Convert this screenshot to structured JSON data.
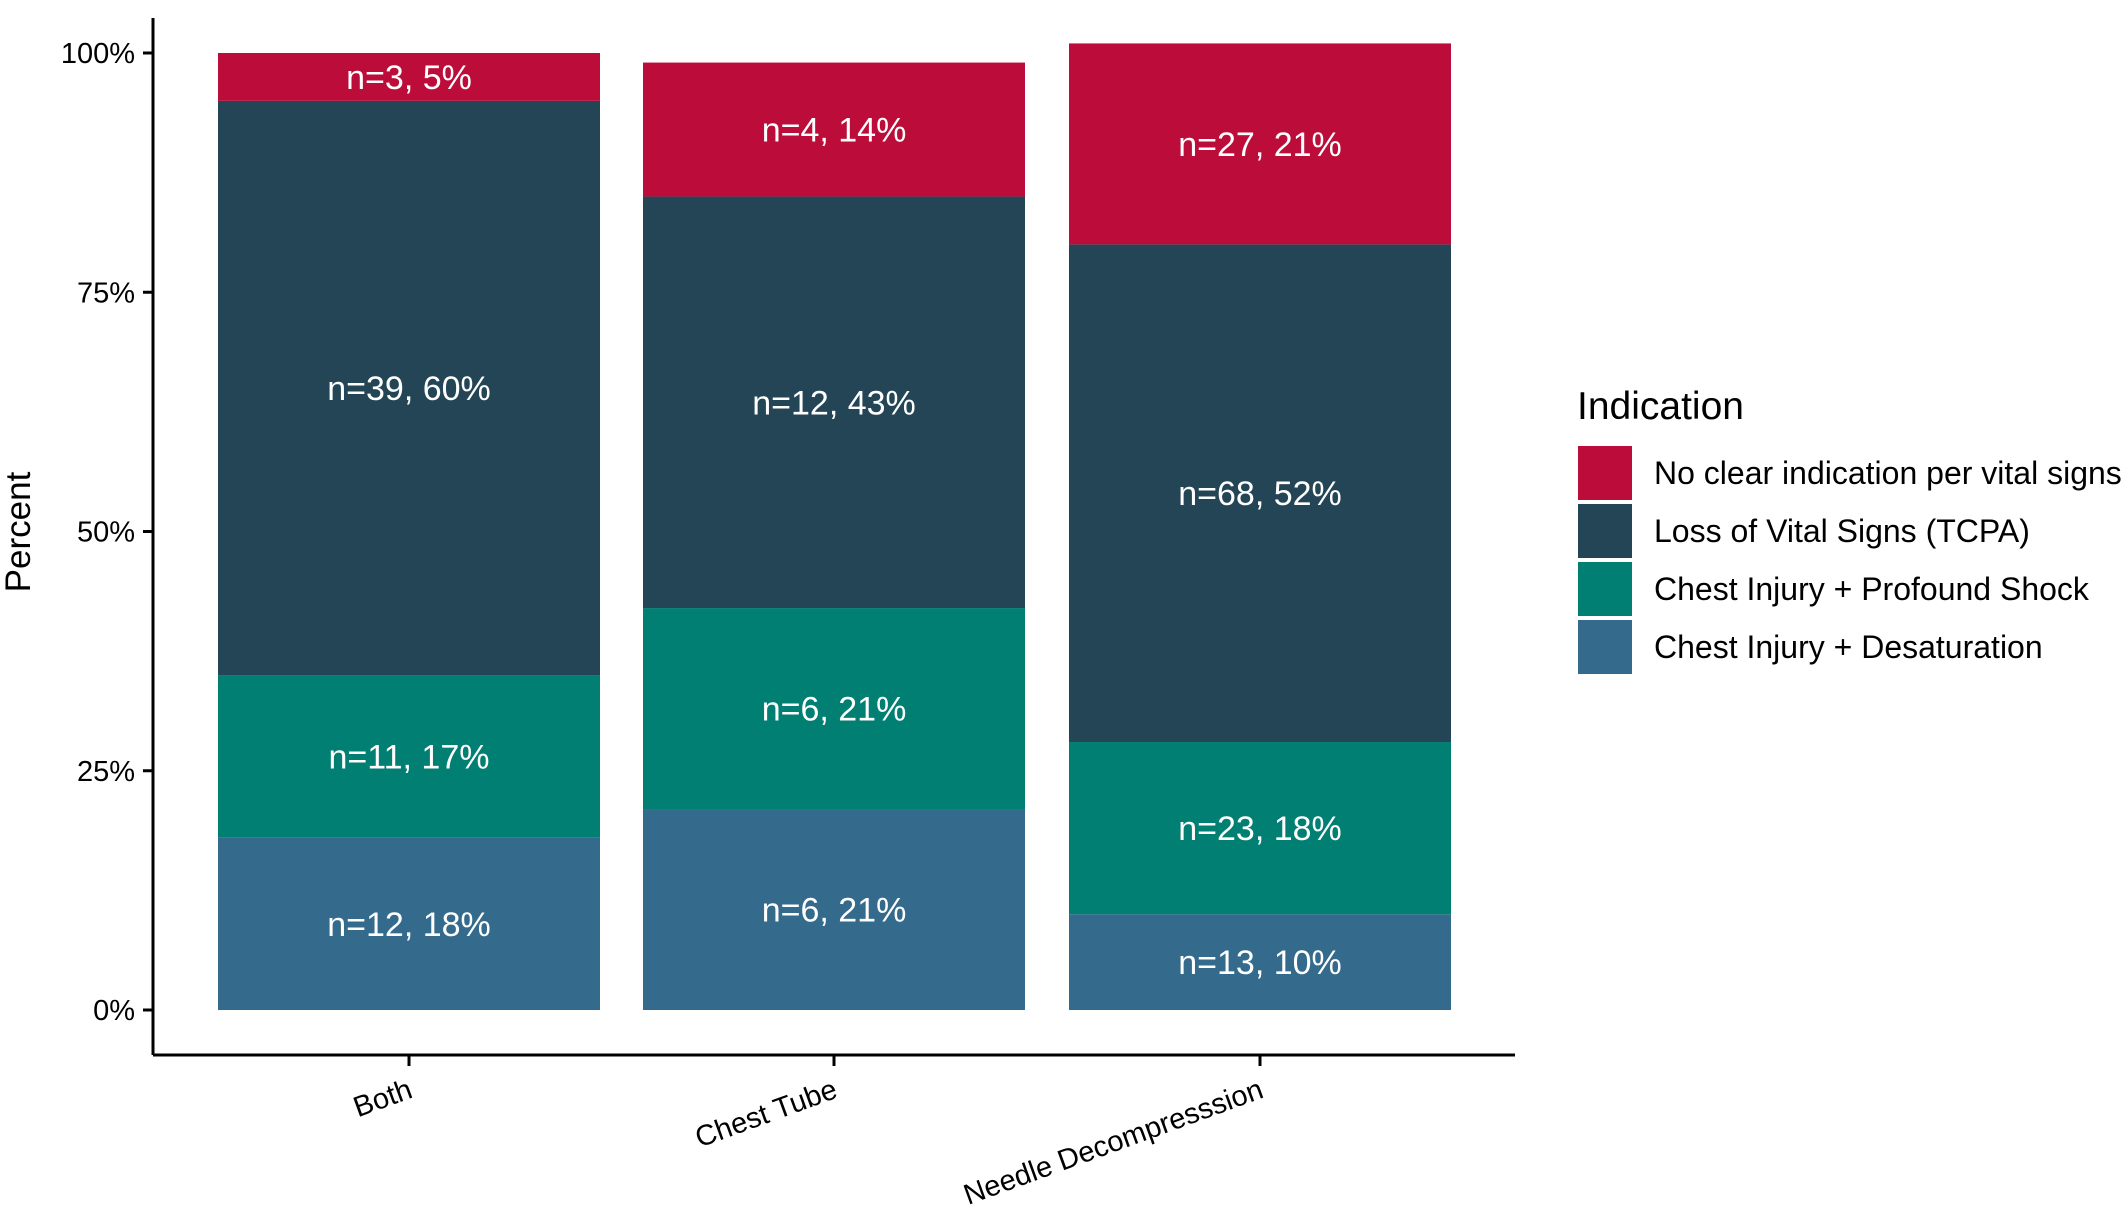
{
  "chart_data": {
    "type": "bar",
    "stacked": true,
    "orientation": "vertical",
    "title": "",
    "xlabel": "",
    "ylabel": "Percent",
    "ylim": [
      0,
      100
    ],
    "yticks": [
      "0%",
      "25%",
      "50%",
      "75%",
      "100%"
    ],
    "ytick_values": [
      0,
      25,
      50,
      75,
      100
    ],
    "categories": [
      "Both",
      "Chest Tube",
      "Needle Decompresssion"
    ],
    "legend_title": "Indication",
    "legend_position": "right",
    "grid": false,
    "series": [
      {
        "name": "Chest Injury + Desaturation",
        "color": "#346a8b",
        "values": [
          18,
          21,
          10
        ],
        "labels": [
          "n=12, 18%",
          "n=6, 21%",
          "n=13, 10%"
        ]
      },
      {
        "name": "Chest Injury + Profound Shock",
        "color": "#007f72",
        "values": [
          17,
          21,
          18
        ],
        "labels": [
          "n=11, 17%",
          "n=6, 21%",
          "n=23, 18%"
        ]
      },
      {
        "name": "Loss of Vital Signs (TCPA)",
        "color": "#244556",
        "values": [
          60,
          43,
          52
        ],
        "labels": [
          "n=39, 60%",
          "n=12, 43%",
          "n=68, 52%"
        ]
      },
      {
        "name": "No clear indication per vital signs",
        "color": "#bc0d3a",
        "values": [
          5,
          14,
          21
        ],
        "labels": [
          "n=3, 5%",
          "n=4, 14%",
          "n=27, 21%"
        ]
      }
    ],
    "legend_order": [
      "No clear indication per vital signs",
      "Loss of Vital Signs (TCPA)",
      "Chest Injury + Profound Shock",
      "Chest Injury + Desaturation"
    ]
  }
}
